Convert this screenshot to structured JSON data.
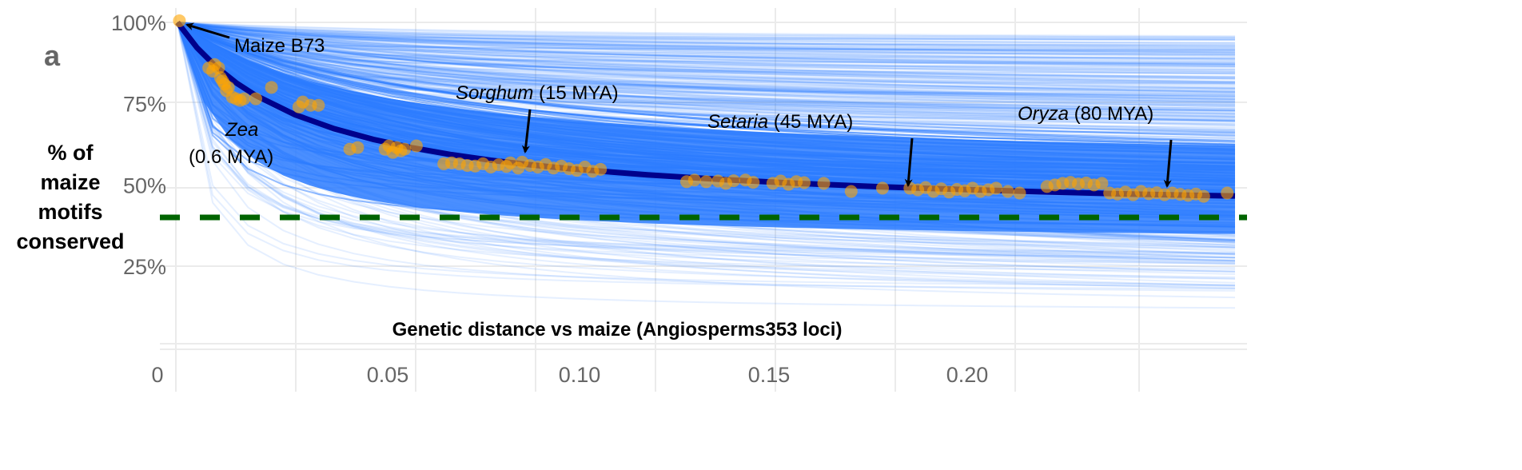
{
  "chart_data": {
    "type": "scatter",
    "panel_label": "a",
    "xlabel": "Genetic distance vs maize (Angiosperms353 loci)",
    "ylabel_lines": [
      "% of",
      "maize",
      "motifs",
      "conserved"
    ],
    "x_ticks": [
      {
        "value": 0,
        "label": "0"
      },
      {
        "value": 0.05,
        "label": "0.05"
      },
      {
        "value": 0.1,
        "label": "0.10"
      },
      {
        "value": 0.15,
        "label": "0.15"
      },
      {
        "value": 0.2,
        "label": "0.20"
      }
    ],
    "y_ticks": [
      {
        "value": 100,
        "label": "100%"
      },
      {
        "value": 75,
        "label": "75%"
      },
      {
        "value": 50,
        "label": "50%"
      },
      {
        "value": 25,
        "label": "25%"
      }
    ],
    "xlim": [
      0,
      0.27
    ],
    "ylim": [
      0,
      100
    ],
    "grid": true,
    "reference_line": {
      "y": 41,
      "style": "dashed",
      "color": "#006400"
    },
    "colors": {
      "points": "#FFA500",
      "fit": "#00008B",
      "posterior": "#2B7BFF"
    },
    "fit_curve": {
      "x": [
        0,
        0.005,
        0.01,
        0.015,
        0.02,
        0.03,
        0.04,
        0.05,
        0.06,
        0.07,
        0.08,
        0.09,
        0.1,
        0.12,
        0.14,
        0.16,
        0.18,
        0.2,
        0.22,
        0.24,
        0.26,
        0.27
      ],
      "y": [
        100,
        92.2,
        86.2,
        81.4,
        77.5,
        71.6,
        67.3,
        64.0,
        61.4,
        59.3,
        57.6,
        56.2,
        55.0,
        53.1,
        51.6,
        50.4,
        49.4,
        48.6,
        47.9,
        47.3,
        46.8,
        46.6
      ]
    },
    "points": [
      [
        0.0005,
        100.5
      ],
      [
        0.008,
        86
      ],
      [
        0.009,
        85
      ],
      [
        0.0095,
        87
      ],
      [
        0.0105,
        86
      ],
      [
        0.011,
        83
      ],
      [
        0.0115,
        82
      ],
      [
        0.012,
        81
      ],
      [
        0.0125,
        79
      ],
      [
        0.013,
        80
      ],
      [
        0.014,
        77
      ],
      [
        0.015,
        76.5
      ],
      [
        0.016,
        76
      ],
      [
        0.017,
        76.5
      ],
      [
        0.02,
        76.5
      ],
      [
        0.024,
        80
      ],
      [
        0.031,
        74
      ],
      [
        0.032,
        75.5
      ],
      [
        0.034,
        74.5
      ],
      [
        0.036,
        74.5
      ],
      [
        0.044,
        61
      ],
      [
        0.046,
        61.5
      ],
      [
        0.053,
        61
      ],
      [
        0.054,
        62
      ],
      [
        0.055,
        60
      ],
      [
        0.056,
        61.5
      ],
      [
        0.057,
        60.5
      ],
      [
        0.058,
        61
      ],
      [
        0.061,
        62
      ],
      [
        0.068,
        56.5
      ],
      [
        0.07,
        56.8
      ],
      [
        0.072,
        56.5
      ],
      [
        0.074,
        56
      ],
      [
        0.076,
        55.8
      ],
      [
        0.078,
        56.5
      ],
      [
        0.08,
        55.5
      ],
      [
        0.082,
        56.2
      ],
      [
        0.084,
        55.7
      ],
      [
        0.085,
        56.8
      ],
      [
        0.087,
        55.2
      ],
      [
        0.088,
        57
      ],
      [
        0.09,
        56
      ],
      [
        0.092,
        55.5
      ],
      [
        0.094,
        56.3
      ],
      [
        0.096,
        55.2
      ],
      [
        0.098,
        55.8
      ],
      [
        0.1,
        55
      ],
      [
        0.102,
        54.5
      ],
      [
        0.104,
        55.5
      ],
      [
        0.106,
        54.2
      ],
      [
        0.108,
        54.8
      ],
      [
        0.13,
        51
      ],
      [
        0.132,
        51.5
      ],
      [
        0.135,
        51
      ],
      [
        0.138,
        51.2
      ],
      [
        0.14,
        50.5
      ],
      [
        0.142,
        51.3
      ],
      [
        0.145,
        51.5
      ],
      [
        0.147,
        50.8
      ],
      [
        0.152,
        50.5
      ],
      [
        0.154,
        51.2
      ],
      [
        0.156,
        50.2
      ],
      [
        0.158,
        51
      ],
      [
        0.16,
        50.7
      ],
      [
        0.165,
        50.5
      ],
      [
        0.172,
        48
      ],
      [
        0.18,
        49
      ],
      [
        0.187,
        49
      ],
      [
        0.189,
        48.5
      ],
      [
        0.191,
        49.2
      ],
      [
        0.193,
        48
      ],
      [
        0.195,
        48.8
      ],
      [
        0.197,
        47.8
      ],
      [
        0.199,
        48.6
      ],
      [
        0.201,
        48.2
      ],
      [
        0.203,
        49
      ],
      [
        0.205,
        48
      ],
      [
        0.207,
        48.5
      ],
      [
        0.209,
        49
      ],
      [
        0.212,
        48
      ],
      [
        0.215,
        47.5
      ],
      [
        0.222,
        49.5
      ],
      [
        0.224,
        50
      ],
      [
        0.226,
        50.5
      ],
      [
        0.228,
        50.8
      ],
      [
        0.23,
        50.3
      ],
      [
        0.232,
        50.6
      ],
      [
        0.234,
        50
      ],
      [
        0.236,
        50.5
      ],
      [
        0.238,
        47.5
      ],
      [
        0.24,
        47.2
      ],
      [
        0.242,
        47.8
      ],
      [
        0.244,
        47
      ],
      [
        0.246,
        48
      ],
      [
        0.248,
        47.3
      ],
      [
        0.25,
        47.6
      ],
      [
        0.252,
        47
      ],
      [
        0.254,
        47.5
      ],
      [
        0.256,
        47.1
      ],
      [
        0.258,
        46.8
      ],
      [
        0.26,
        47.2
      ],
      [
        0.262,
        46.5
      ],
      [
        0.268,
        47.5
      ]
    ],
    "annotations": [
      {
        "id": "maize",
        "text": "Maize B73",
        "italic": ""
      },
      {
        "id": "zea",
        "italic": "Zea",
        "text": "(0.6  MYA)"
      },
      {
        "id": "sorghum",
        "italic": "Sorghum",
        "text": " (15 MYA)"
      },
      {
        "id": "setaria",
        "italic": "Setaria",
        "text": " (45 MYA)"
      },
      {
        "id": "oryza",
        "italic": "Oryza",
        "text": " (80 MYA)"
      }
    ]
  }
}
